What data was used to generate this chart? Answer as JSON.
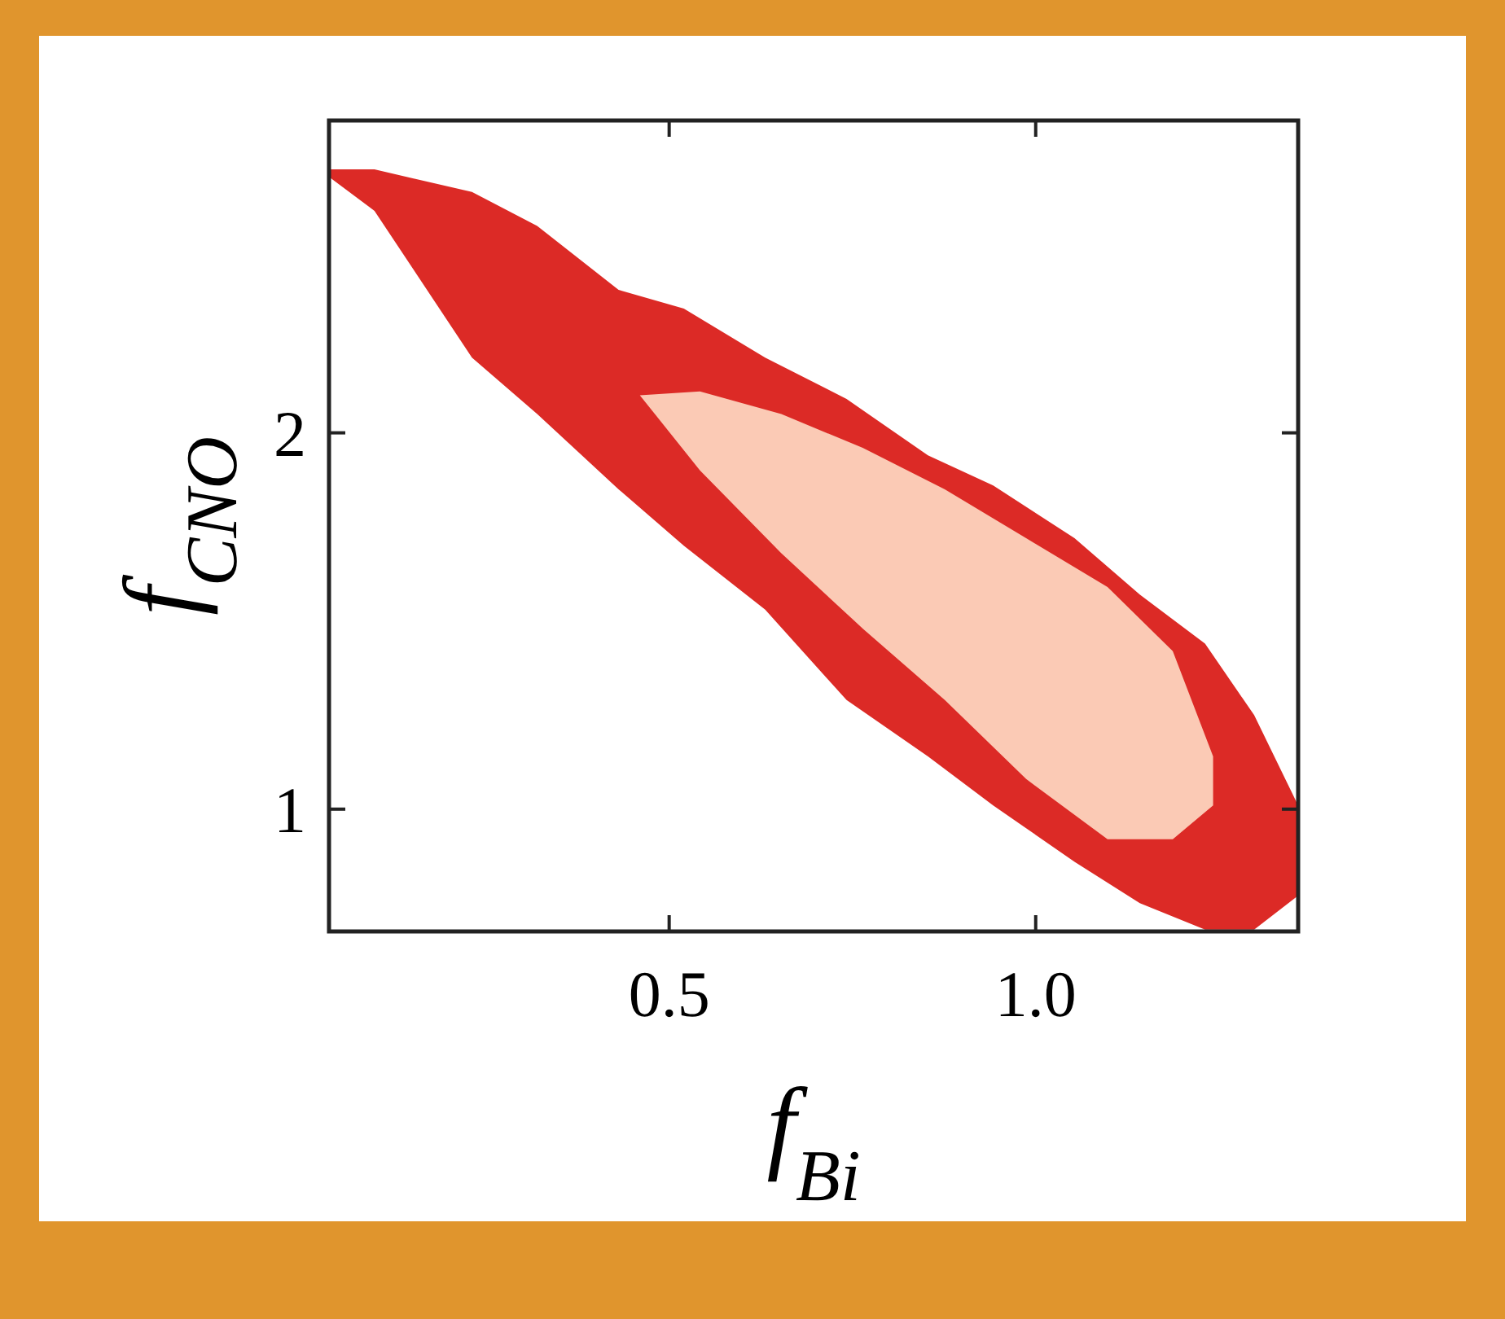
{
  "chart_data": {
    "type": "area",
    "xlabel": "f$_{Bi}$",
    "ylabel": "f$_{CNO}$",
    "xlim": [
      0.036,
      1.358
    ],
    "ylim": [
      0.675,
      2.83
    ],
    "xticks": [
      0.5,
      {
        "value": 1,
        "label": "1.0"
      }
    ],
    "yticks": [
      1,
      2
    ],
    "grid": false,
    "series": [
      {
        "color": "#dc2a26",
        "x": [
          0.036,
          0.098,
          0.231,
          0.32,
          0.431,
          0.52,
          0.631,
          0.742,
          0.853,
          0.942,
          1.053,
          1.142,
          1.231,
          1.298,
          1.358,
          1.358,
          1.298,
          1.231,
          1.142,
          1.053,
          0.942,
          0.853,
          0.742,
          0.631,
          0.52,
          0.431,
          0.32,
          0.231,
          0.098,
          0.036
        ],
        "values": [
          2.7,
          2.7,
          2.64,
          2.55,
          2.38,
          2.33,
          2.2,
          2.09,
          1.94,
          1.86,
          1.72,
          1.57,
          1.44,
          1.25,
          1.01,
          0.77,
          0.68,
          0.68,
          0.75,
          0.86,
          1.01,
          1.14,
          1.29,
          1.53,
          1.7,
          1.85,
          2.05,
          2.2,
          2.59,
          2.68
        ]
      },
      {
        "color": "#fbcab5",
        "x": [
          0.46,
          0.542,
          0.653,
          0.764,
          0.876,
          0.987,
          1.098,
          1.187,
          1.242,
          1.242,
          1.187,
          1.098,
          0.987,
          0.876,
          0.764,
          0.653,
          0.542,
          0.46
        ],
        "values": [
          2.1,
          2.11,
          2.05,
          1.96,
          1.85,
          1.72,
          1.59,
          1.42,
          1.14,
          1.01,
          0.92,
          0.92,
          1.08,
          1.29,
          1.48,
          1.68,
          1.9,
          2.1
        ]
      }
    ]
  }
}
